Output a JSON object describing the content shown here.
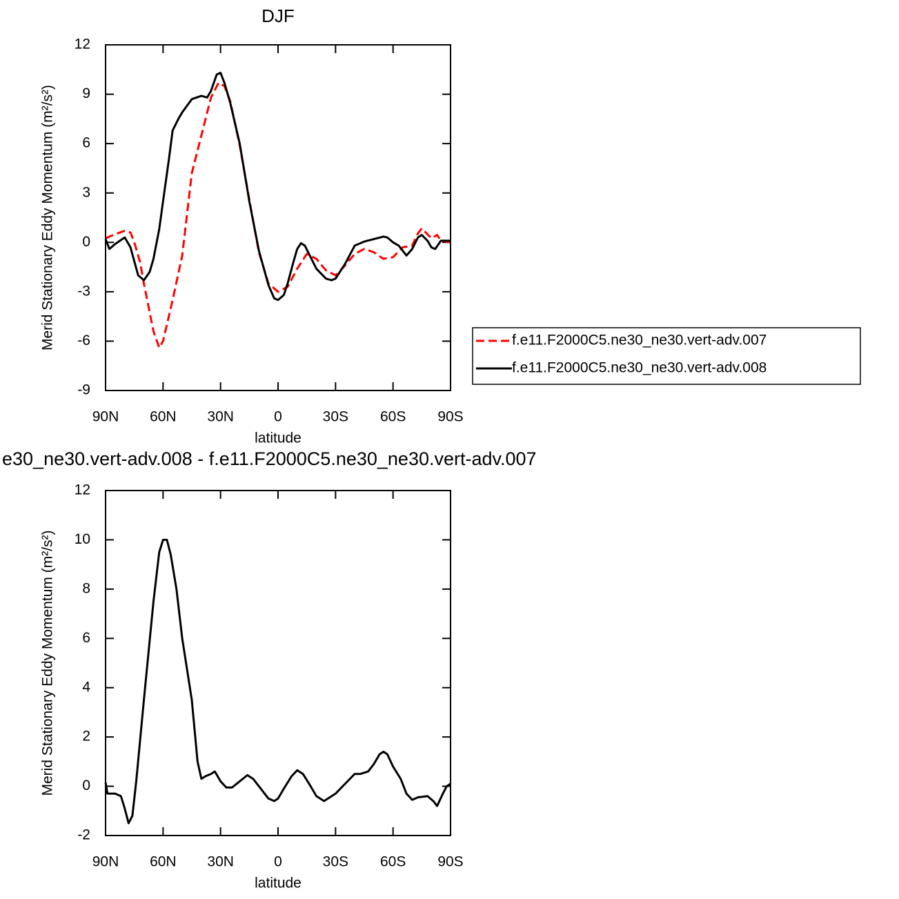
{
  "chart_data": [
    {
      "type": "line",
      "title": "DJF",
      "xlabel": "latitude",
      "ylabel": "Merid Stationary Eddy Momentum (m²/s²)",
      "xlim": [
        90,
        -90
      ],
      "xticks": [
        {
          "value": 90,
          "label": "90N"
        },
        {
          "value": 60,
          "label": "60N"
        },
        {
          "value": 30,
          "label": "30N"
        },
        0,
        {
          "value": -30,
          "label": "30S"
        },
        {
          "value": -60,
          "label": "60S"
        },
        {
          "value": -90,
          "label": "90S"
        }
      ],
      "ylim": [
        -9,
        12
      ],
      "yticks": [
        -9,
        -6,
        -3,
        0,
        3,
        6,
        9,
        12
      ],
      "legend": "outside right",
      "series": [
        {
          "name": "f.e11.F2000C5.ne30_ne30.vert-adv.007",
          "color": "#ff0000",
          "dash": true,
          "x": [
            90,
            85,
            80,
            77,
            75,
            72,
            70,
            65,
            62,
            60,
            55,
            50,
            45,
            40,
            35,
            31,
            28,
            25,
            20,
            15,
            10,
            5,
            0,
            -5,
            -10,
            -15,
            -20,
            -25,
            -30,
            -35,
            -40,
            -45,
            -50,
            -55,
            -60,
            -65,
            -70,
            -73,
            -75,
            -80,
            -83,
            -85,
            -90
          ],
          "values": [
            0.25,
            0.5,
            0.7,
            0.6,
            0.0,
            -1.2,
            -2.5,
            -5.4,
            -6.4,
            -6.0,
            -3.5,
            -0.8,
            4.2,
            6.5,
            8.8,
            9.7,
            9.5,
            8.6,
            5.9,
            2.6,
            -0.6,
            -2.5,
            -3.0,
            -2.7,
            -1.6,
            -0.7,
            -1.0,
            -1.7,
            -2.0,
            -1.4,
            -0.7,
            -0.4,
            -0.6,
            -1.0,
            -0.9,
            -0.3,
            -0.2,
            0.55,
            0.85,
            0.25,
            0.45,
            0.1,
            0
          ]
        },
        {
          "name": "f.e11.F2000C5.ne30_ne30.vert-adv.008",
          "color": "#000000",
          "dash": false,
          "x": [
            90,
            88,
            85,
            80,
            77,
            73,
            70,
            67,
            65,
            62,
            60,
            57,
            55,
            52,
            50,
            45,
            40,
            37,
            35,
            32,
            30,
            28,
            25,
            20,
            15,
            10,
            5,
            2,
            0,
            -3,
            -5,
            -8,
            -10,
            -12,
            -14,
            -17,
            -20,
            -25,
            -28,
            -30,
            -35,
            -40,
            -45,
            -50,
            -55,
            -57,
            -60,
            -63,
            -67,
            -70,
            -73,
            -75,
            -78,
            -80,
            -82,
            -85,
            -88,
            -90
          ],
          "values": [
            0.2,
            -0.4,
            -0.1,
            0.3,
            -0.3,
            -2.0,
            -2.3,
            -1.8,
            -1.0,
            0.8,
            2.5,
            5.0,
            6.8,
            7.5,
            7.9,
            8.7,
            8.9,
            8.8,
            9.2,
            10.2,
            10.3,
            9.7,
            8.5,
            6.0,
            2.5,
            -0.5,
            -2.6,
            -3.4,
            -3.5,
            -3.2,
            -2.5,
            -1.2,
            -0.4,
            -0.05,
            -0.2,
            -0.9,
            -1.6,
            -2.2,
            -2.3,
            -2.2,
            -1.3,
            -0.2,
            0.05,
            0.2,
            0.35,
            0.3,
            0.0,
            -0.2,
            -0.8,
            -0.4,
            0.3,
            0.45,
            0.1,
            -0.3,
            -0.4,
            0.1,
            0.1,
            0.1
          ]
        }
      ]
    },
    {
      "type": "line",
      "title": "e30_ne30.vert-adv.008 - f.e11.F2000C5.ne30_ne30.vert-adv.007",
      "xlabel": "latitude",
      "ylabel": "Merid Stationary Eddy Momentum (m²/s²)",
      "xlim": [
        90,
        -90
      ],
      "xticks": [
        {
          "value": 90,
          "label": "90N"
        },
        {
          "value": 60,
          "label": "60N"
        },
        {
          "value": 30,
          "label": "30N"
        },
        0,
        {
          "value": -30,
          "label": "30S"
        },
        {
          "value": -60,
          "label": "60S"
        },
        {
          "value": -90,
          "label": "90S"
        }
      ],
      "ylim": [
        -2,
        12
      ],
      "yticks": [
        -2,
        0,
        2,
        4,
        6,
        8,
        10,
        12
      ],
      "color": "#000000",
      "x": [
        90,
        89,
        85,
        82,
        80,
        78,
        76,
        74,
        70,
        65,
        62,
        60,
        58,
        56,
        53,
        50,
        45,
        42,
        40,
        38,
        35,
        33,
        30,
        27,
        24,
        20,
        16,
        13,
        10,
        5,
        2,
        0,
        -3,
        -7,
        -10,
        -13,
        -17,
        -20,
        -24,
        -27,
        -30,
        -35,
        -40,
        -43,
        -47,
        -50,
        -53,
        -55,
        -57,
        -60,
        -64,
        -67,
        -70,
        -73,
        -78,
        -81,
        -83,
        -86,
        -88,
        -90
      ],
      "values": [
        0.15,
        -0.3,
        -0.3,
        -0.4,
        -0.9,
        -1.5,
        -1.2,
        0.2,
        3.5,
        7.5,
        9.5,
        10.0,
        10.0,
        9.4,
        8.0,
        6.0,
        3.5,
        1.0,
        0.3,
        0.4,
        0.5,
        0.6,
        0.2,
        -0.05,
        -0.05,
        0.2,
        0.45,
        0.3,
        0.0,
        -0.5,
        -0.6,
        -0.5,
        -0.1,
        0.4,
        0.65,
        0.5,
        0.0,
        -0.4,
        -0.6,
        -0.45,
        -0.3,
        0.1,
        0.5,
        0.5,
        0.6,
        0.9,
        1.3,
        1.4,
        1.3,
        0.8,
        0.3,
        -0.3,
        -0.55,
        -0.45,
        -0.4,
        -0.6,
        -0.8,
        -0.3,
        0.0,
        0.1
      ]
    }
  ]
}
